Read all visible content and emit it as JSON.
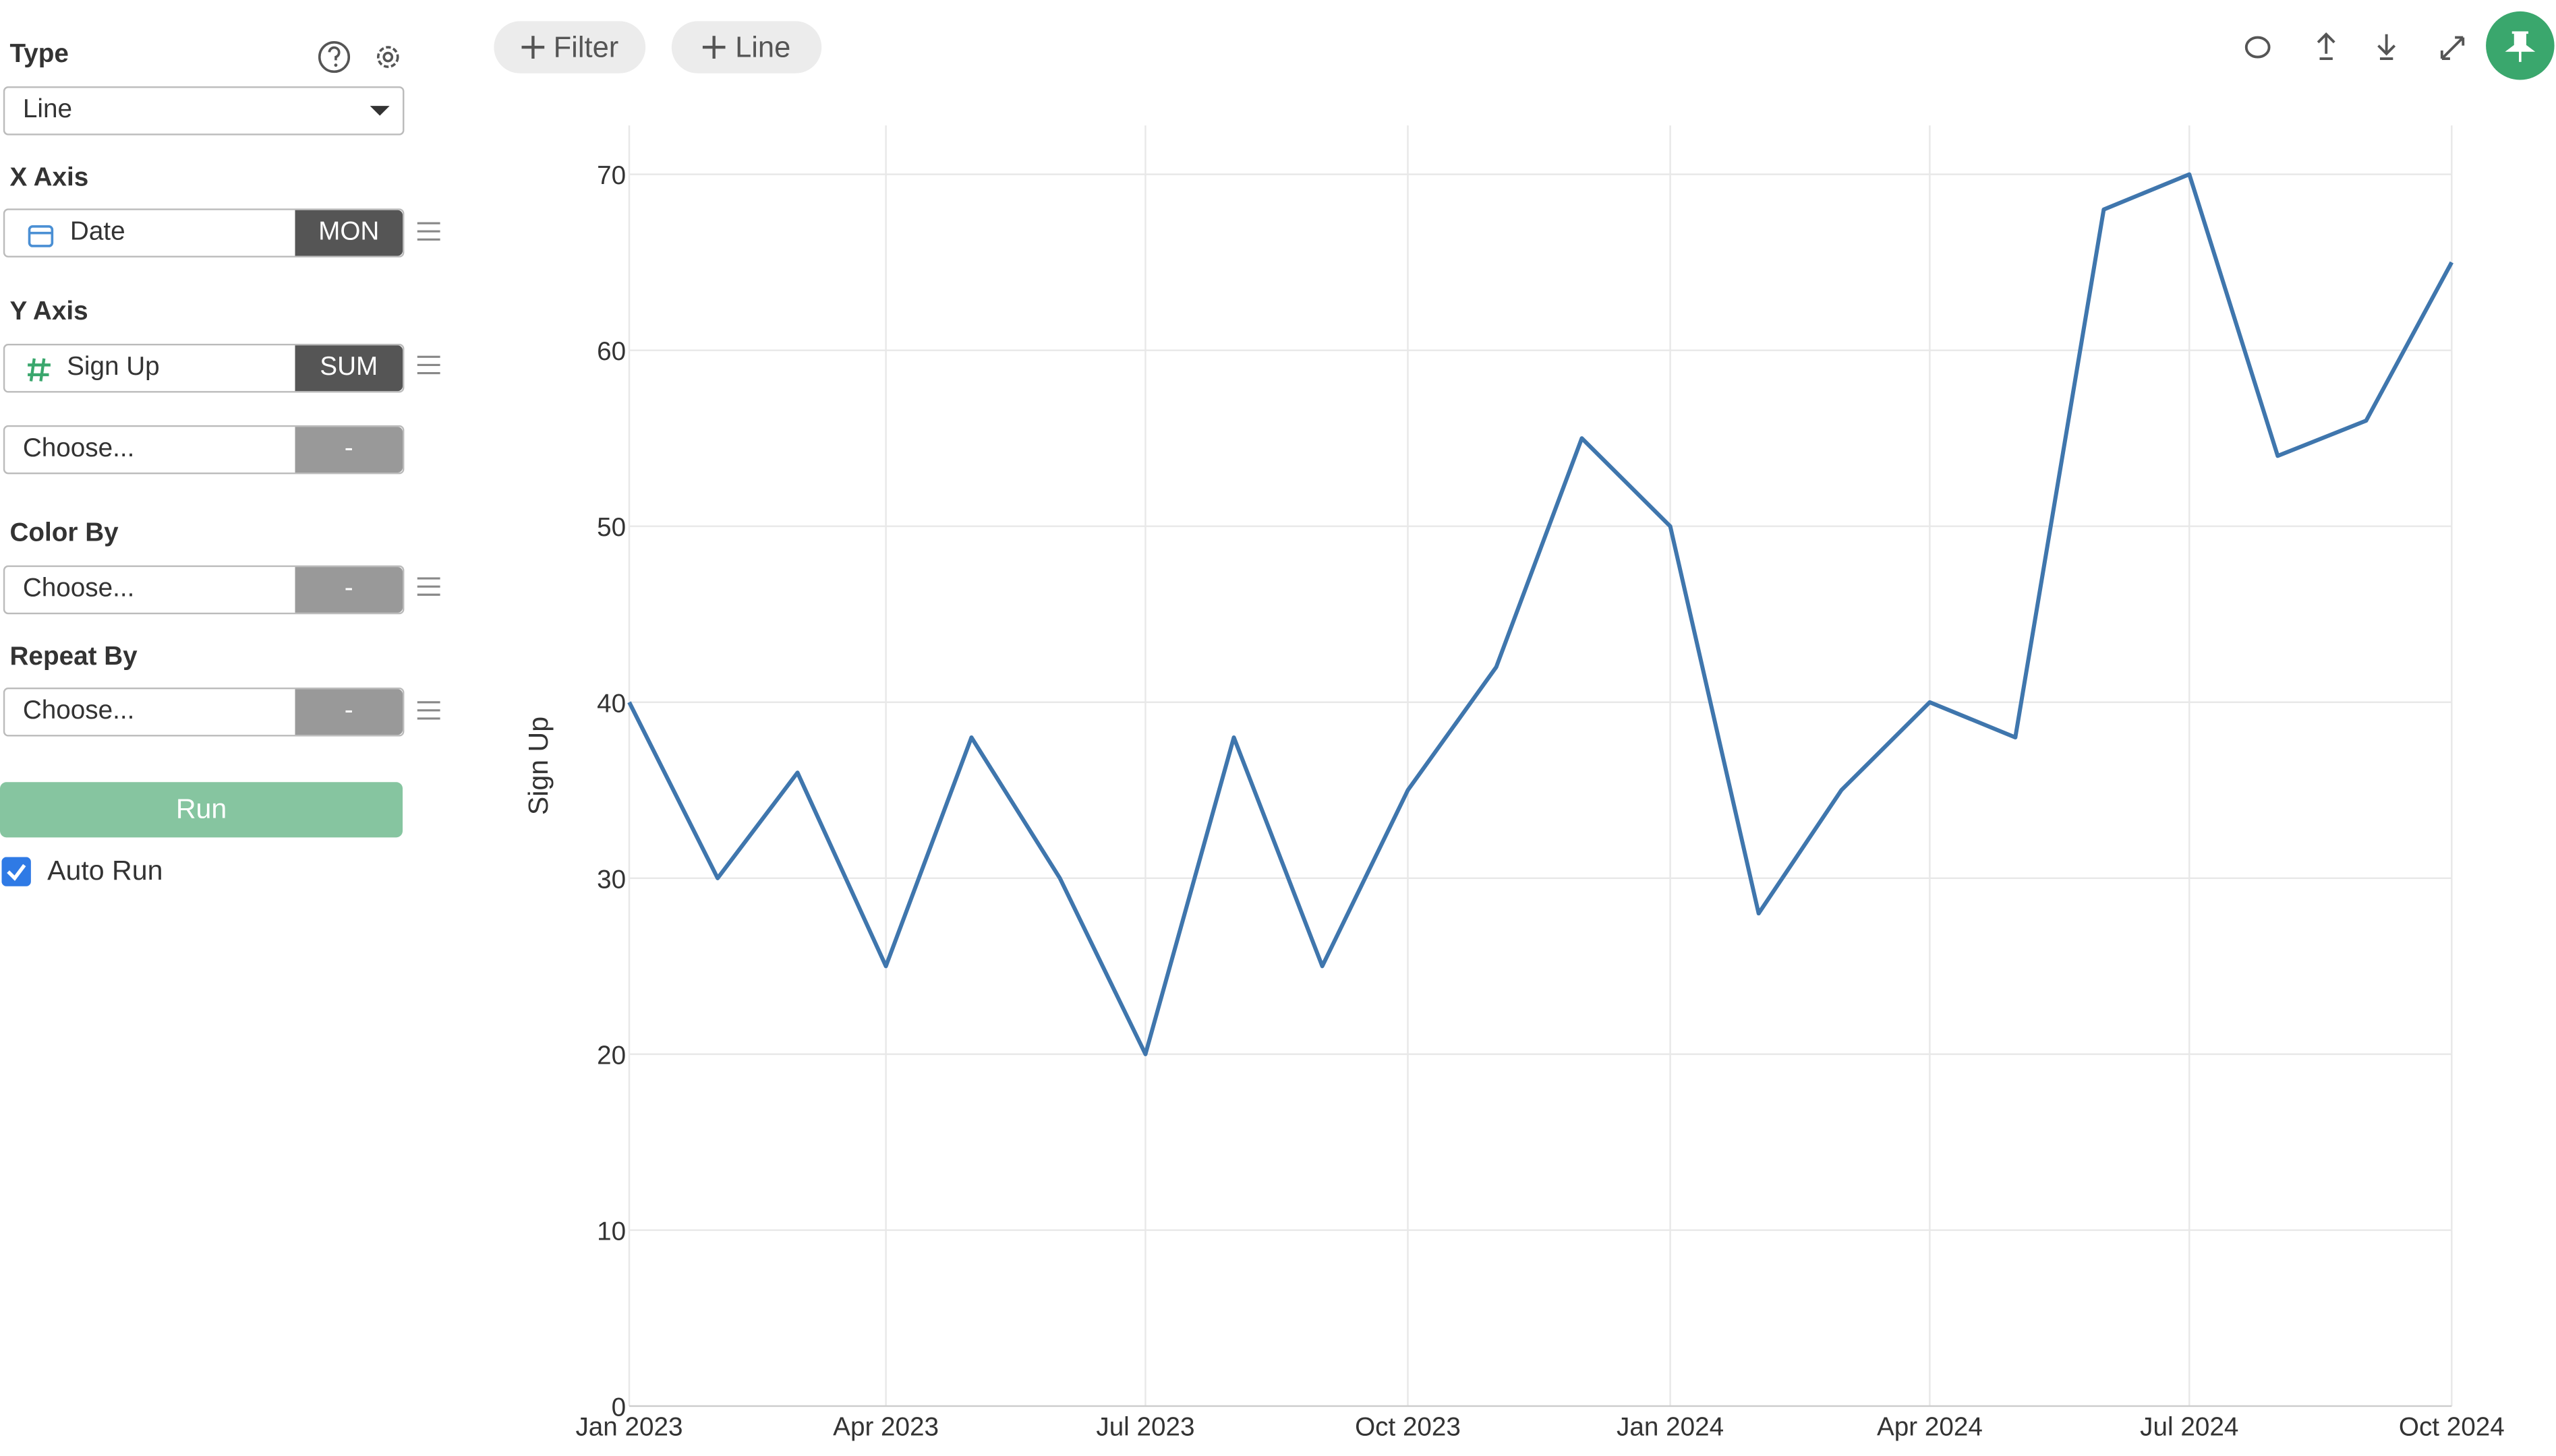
{
  "sidebar": {
    "type_label": "Type",
    "type_value": "Line",
    "x_axis_label": "X Axis",
    "x_field": "Date",
    "x_agg": "MON",
    "y_axis_label": "Y Axis",
    "y_field": "Sign Up",
    "y_agg": "SUM",
    "y2_field": "Choose...",
    "y2_agg": "-",
    "color_by_label": "Color By",
    "color_by_field": "Choose...",
    "color_by_agg": "-",
    "repeat_by_label": "Repeat By",
    "repeat_by_field": "Choose...",
    "repeat_by_agg": "-",
    "run_button": "Run",
    "auto_run": "Auto Run"
  },
  "toolbar": {
    "filter_button": "Filter",
    "line_button": "Line"
  },
  "chart_data": {
    "type": "line",
    "y_label": "Sign Up",
    "color": "#3f76ad",
    "grid": true,
    "x": [
      "2023-01",
      "2023-02",
      "2023-03",
      "2023-04",
      "2023-05",
      "2023-06",
      "2023-07",
      "2023-08",
      "2023-09",
      "2023-10",
      "2023-11",
      "2023-12",
      "2024-01",
      "2024-02",
      "2024-03",
      "2024-04",
      "2024-05",
      "2024-06",
      "2024-07",
      "2024-08",
      "2024-09",
      "2024-10"
    ],
    "values": [
      40,
      30,
      36,
      25,
      38,
      30,
      20,
      38,
      25,
      35,
      42,
      55,
      50,
      28,
      35,
      40,
      38,
      68,
      70,
      54,
      56,
      65
    ],
    "xlim": [
      "2023-01",
      "2024-10"
    ],
    "xticks": [
      {
        "value": "2023-01",
        "label": "Jan 2023"
      },
      {
        "value": "2023-04",
        "label": "Apr 2023"
      },
      {
        "value": "2023-07",
        "label": "Jul 2023"
      },
      {
        "value": "2023-10",
        "label": "Oct 2023"
      },
      {
        "value": "2024-01",
        "label": "Jan 2024"
      },
      {
        "value": "2024-04",
        "label": "Apr 2024"
      },
      {
        "value": "2024-07",
        "label": "Jul 2024"
      },
      {
        "value": "2024-10",
        "label": "Oct 2024"
      }
    ],
    "ylim": [
      0,
      70
    ],
    "yticks": [
      0,
      10,
      20,
      30,
      40,
      50,
      60,
      70
    ]
  }
}
